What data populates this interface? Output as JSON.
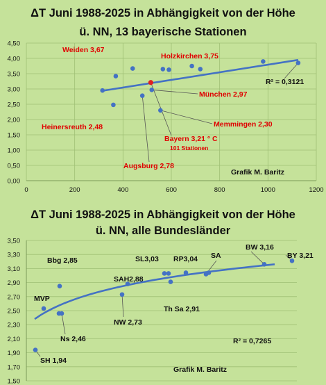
{
  "chart_data": [
    {
      "type": "scatter",
      "title": "ΔT Juni 1988-2025 in Abhängigkeit von der Höhe",
      "subtitle": "ü. NN, 13 bayerische Stationen",
      "credit": "Grafik M. Baritz",
      "r2_text": "R² = 0,3121",
      "xlim": [
        0,
        1200
      ],
      "ylim": [
        0,
        4.5
      ],
      "x_ticks": [
        0,
        200,
        400,
        600,
        800,
        1000,
        1200
      ],
      "x_tick_labels": [
        "0",
        "200",
        "400",
        "600",
        "800",
        "1000",
        "1200"
      ],
      "y_ticks": [
        0,
        0.5,
        1,
        1.5,
        2,
        2.5,
        3,
        3.5,
        4,
        4.5
      ],
      "y_tick_labels": [
        "0,00",
        "0,50",
        "1,00",
        "1,50",
        "2,00",
        "2,50",
        "3,00",
        "3,50",
        "4,00",
        "4,50"
      ],
      "trendline": {
        "type": "linear",
        "x": [
          315,
          1125
        ],
        "y": [
          2.94,
          3.95
        ]
      },
      "points": [
        {
          "x": 315,
          "y": 2.95
        },
        {
          "x": 360,
          "y": 2.48
        },
        {
          "x": 370,
          "y": 3.42
        },
        {
          "x": 440,
          "y": 3.67
        },
        {
          "x": 480,
          "y": 2.78
        },
        {
          "x": 519,
          "y": 2.97
        },
        {
          "x": 555,
          "y": 2.3
        },
        {
          "x": 565,
          "y": 3.65
        },
        {
          "x": 590,
          "y": 3.63
        },
        {
          "x": 685,
          "y": 3.75
        },
        {
          "x": 720,
          "y": 3.65
        },
        {
          "x": 980,
          "y": 3.9
        },
        {
          "x": 1125,
          "y": 3.85
        }
      ],
      "mean_point": {
        "x": 515,
        "y": 3.21,
        "color": "#e02020"
      },
      "annotations": [
        {
          "text": "Weiden 3,67",
          "color": "red"
        },
        {
          "text": "Holzkirchen 3,75",
          "color": "red"
        },
        {
          "text": "München 2,97",
          "color": "red"
        },
        {
          "text": "Memmingen 2,30",
          "color": "red"
        },
        {
          "text": "Heinersreuth 2,48",
          "color": "red"
        },
        {
          "text": "Bayern 3,21 ° C",
          "color": "red"
        },
        {
          "text": "101  Stationen",
          "color": "red"
        },
        {
          "text": "Augsburg 2,78",
          "color": "red"
        }
      ],
      "colors": {
        "points": "#4472c4",
        "trendline": "#4472c4",
        "labels": "#e00000"
      }
    },
    {
      "type": "scatter",
      "title": "ΔT Juni 1988-2025 in Abhängigkeit von der Höhe",
      "subtitle": "ü. NN, alle Bundesländer",
      "credit": "Grafik M. Baritz",
      "r2_text": "R² = 0,7265",
      "ylim": [
        1.5,
        3.5
      ],
      "y_ticks": [
        1.5,
        1.7,
        1.9,
        2.1,
        2.3,
        2.5,
        2.7,
        2.9,
        3.1,
        3.3,
        3.5
      ],
      "y_tick_labels": [
        "1,50",
        "1,70",
        "1,90",
        "2,10",
        "2,30",
        "2,50",
        "2,70",
        "2,90",
        "3,10",
        "3,30",
        "3,50"
      ],
      "trendline": {
        "type": "logarithmic"
      },
      "points": [
        {
          "label": "SH 1,94",
          "y": 1.94
        },
        {
          "label": "MVP",
          "y": 2.53
        },
        {
          "label": "Bbg 2,85",
          "y": 2.85
        },
        {
          "label": "Ns 2,46",
          "y": 2.46
        },
        {
          "label": "",
          "y": 2.46
        },
        {
          "label": "NW 2,73",
          "y": 2.73
        },
        {
          "label": "SAH2,88",
          "y": 2.88
        },
        {
          "label": "SL3,03",
          "y": 3.03
        },
        {
          "label": "",
          "y": 3.03
        },
        {
          "label": "Th Sa 2,91",
          "y": 2.91
        },
        {
          "label": "RP3,04",
          "y": 3.04
        },
        {
          "label": "SA",
          "y": 3.02
        },
        {
          "label": "",
          "y": 3.04
        },
        {
          "label": "BW 3,16",
          "y": 3.16
        },
        {
          "label": "BY 3,21",
          "y": 3.21
        }
      ],
      "colors": {
        "points": "#4472c4",
        "trendline": "#4472c4",
        "labels": "#111111"
      }
    }
  ]
}
